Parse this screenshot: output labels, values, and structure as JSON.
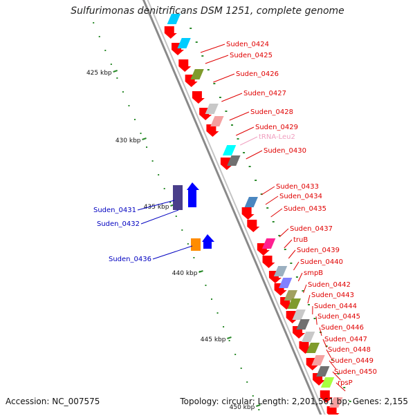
{
  "title": "Sulfurimonas denitrificans DSM 1251, complete genome",
  "footer": {
    "accession": "Accession: NC_007575",
    "topology": "Topology: circular; Length: 2,201,561 bp; Genes: 2,155"
  },
  "colors": {
    "backbone": "#8a8a8a",
    "forward_label": "#e00000",
    "reverse_label": "#0000c0",
    "trna_label": "#f0a0c0",
    "tick": "#2a8a2a"
  },
  "scale_labels": [
    "425 kbp",
    "430 kbp",
    "435 kbp",
    "440 kbp",
    "445 kbp",
    "450 kbp"
  ],
  "forward_gene_labels": [
    "Suden_0424",
    "Suden_0425",
    "Suden_0426",
    "Suden_0427",
    "Suden_0428",
    "Suden_0429",
    "tRNA-Leu2",
    "Suden_0430",
    "Suden_0433",
    "Suden_0434",
    "Suden_0435",
    "Suden_0437",
    "truB",
    "Suden_0439",
    "Suden_0440",
    "smpB",
    "Suden_0442",
    "Suden_0443",
    "Suden_0444",
    "Suden_0445",
    "Suden_0446",
    "Suden_0447",
    "Suden_0448",
    "Suden_0449",
    "Suden_0450",
    "rpsP"
  ],
  "reverse_gene_labels": [
    "Suden_0431",
    "Suden_0432",
    "Suden_0436"
  ]
}
